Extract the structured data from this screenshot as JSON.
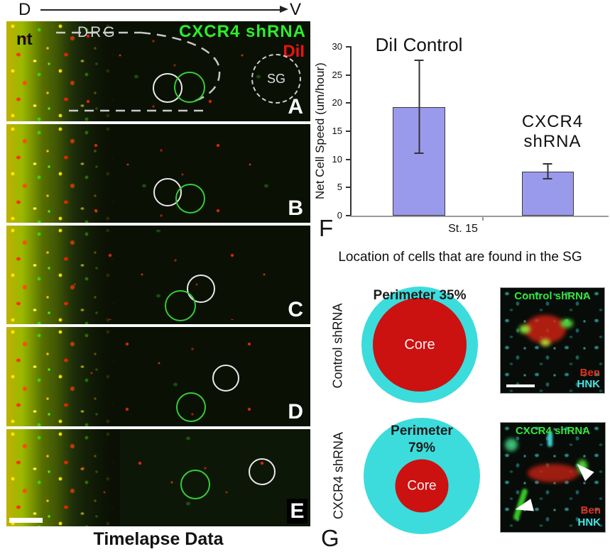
{
  "figure_axis": {
    "left_label": "D",
    "right_label": "V"
  },
  "timelapse": {
    "caption": "Timelapse Data",
    "panel_letters": [
      "A",
      "B",
      "C",
      "D",
      "E"
    ],
    "panel_a_labels": {
      "neural_tube": "nt",
      "drg": "DRG",
      "green_channel": "CXCR4 shRNA",
      "red_channel": "DiI",
      "sympathetic_ganglion": "SG"
    }
  },
  "chart_data": {
    "type": "bar",
    "categories": [
      "DiI Control",
      "CXCR4 shRNA"
    ],
    "values": [
      19.3,
      7.8
    ],
    "error_upper": [
      8.4,
      1.5
    ],
    "error_lower": [
      8.3,
      1.4
    ],
    "x_tick_label": "St. 15",
    "ylabel": "Net Cell Speed (um/hour)",
    "ylim": [
      0,
      30
    ],
    "yticks": [
      0,
      5,
      10,
      15,
      20,
      25,
      30
    ],
    "panel_letter": "F",
    "bar_color": "#9a9aed",
    "grid": false,
    "legend_position": "none"
  },
  "location_section": {
    "title": "Location of cells that are found in the SG",
    "panel_letter": "G",
    "colors": {
      "perimeter_ring": "#3cdcdc",
      "core": "#cc1111"
    },
    "rows": [
      {
        "row_label": "Control shRNA",
        "perimeter_line1": "Perimeter 35%",
        "perimeter_line2": "",
        "perimeter_pct": 35,
        "core_label": "Core",
        "image_label": "Control shRNA",
        "stain_red_label": "Ben",
        "stain_cyan_label": "HNK"
      },
      {
        "row_label": "CXCR4 shRNA",
        "perimeter_line1": "Perimeter",
        "perimeter_line2": "79%",
        "perimeter_pct": 79,
        "core_label": "Core",
        "image_label": "CXCR4 shRNA",
        "stain_red_label": "Ben",
        "stain_cyan_label": "HNK"
      }
    ]
  }
}
